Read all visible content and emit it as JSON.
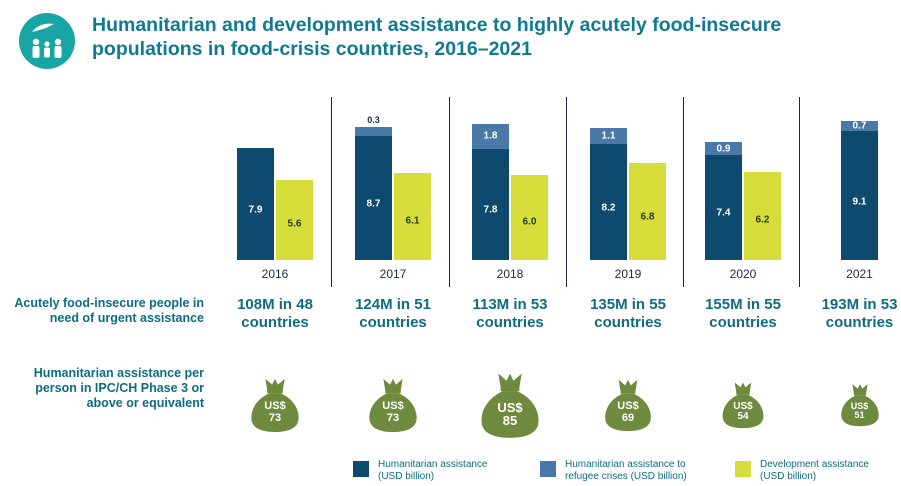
{
  "title": {
    "line1": "Humanitarian and development assistance to highly acutely food-insecure",
    "line2": "populations in food-crisis countries, 2016–2021"
  },
  "row_labels": {
    "people_line1": "Acutely food-insecure people in",
    "people_line2": "need of urgent assistance",
    "assist_line1": "Humanitarian assistance per",
    "assist_line2": "person in IPC/CH Phase 3 or",
    "assist_line3": "above or equivalent"
  },
  "colors": {
    "humanitarian": "#0d4a6e",
    "refugee": "#4a78a8",
    "development": "#d7dd3a",
    "bag": "#6e8a3e",
    "title": "#0f7a92",
    "logo": "#1aa5a5"
  },
  "chart_data": {
    "type": "bar",
    "stacked_with_grouping": true,
    "categories": [
      "2016",
      "2017",
      "2018",
      "2019",
      "2020",
      "2021"
    ],
    "series": [
      {
        "name": "Humanitarian assistance (USD billion)",
        "values": [
          7.9,
          8.7,
          7.8,
          8.2,
          7.4,
          9.1
        ]
      },
      {
        "name": "Humanitarian assistance to refugee crises (USD billion)",
        "values": [
          null,
          0.3,
          1.8,
          1.1,
          0.9,
          0.7
        ]
      },
      {
        "name": "Development assistance (USD billion)",
        "values": [
          5.6,
          6.1,
          6.0,
          6.8,
          6.2,
          null
        ]
      }
    ],
    "value_labels": {
      "humanitarian": [
        "7.9",
        "8.7",
        "7.8",
        "8.2",
        "7.4",
        "9.1"
      ],
      "refugee": [
        "",
        "0.3",
        "1.8",
        "1.1",
        "0.9",
        "0.7"
      ],
      "development": [
        "5.6",
        "6.1",
        "6.0",
        "6.8",
        "6.2",
        ""
      ]
    },
    "people": [
      {
        "line1": "108M in 48",
        "line2": "countries"
      },
      {
        "line1": "124M in 51",
        "line2": "countries"
      },
      {
        "line1": "113M in 53",
        "line2": "countries"
      },
      {
        "line1": "135M in 55",
        "line2": "countries"
      },
      {
        "line1": "155M in 55",
        "line2": "countries"
      },
      {
        "line1": "193M in 53",
        "line2": "countries"
      }
    ],
    "per_person": [
      {
        "currency": "US$",
        "value": 73
      },
      {
        "currency": "US$",
        "value": 73
      },
      {
        "currency": "US$",
        "value": 85
      },
      {
        "currency": "US$",
        "value": 69
      },
      {
        "currency": "US$",
        "value": 54
      },
      {
        "currency": "US$",
        "value": 51
      }
    ],
    "legend": [
      {
        "line1": "Humanitarian assistance",
        "line2": "(USD billion)"
      },
      {
        "line1": "Humanitarian assistance to",
        "line2": "refugee crises (USD billion)"
      },
      {
        "line1": "Development assistance",
        "line2": "(USD billion)"
      }
    ]
  }
}
